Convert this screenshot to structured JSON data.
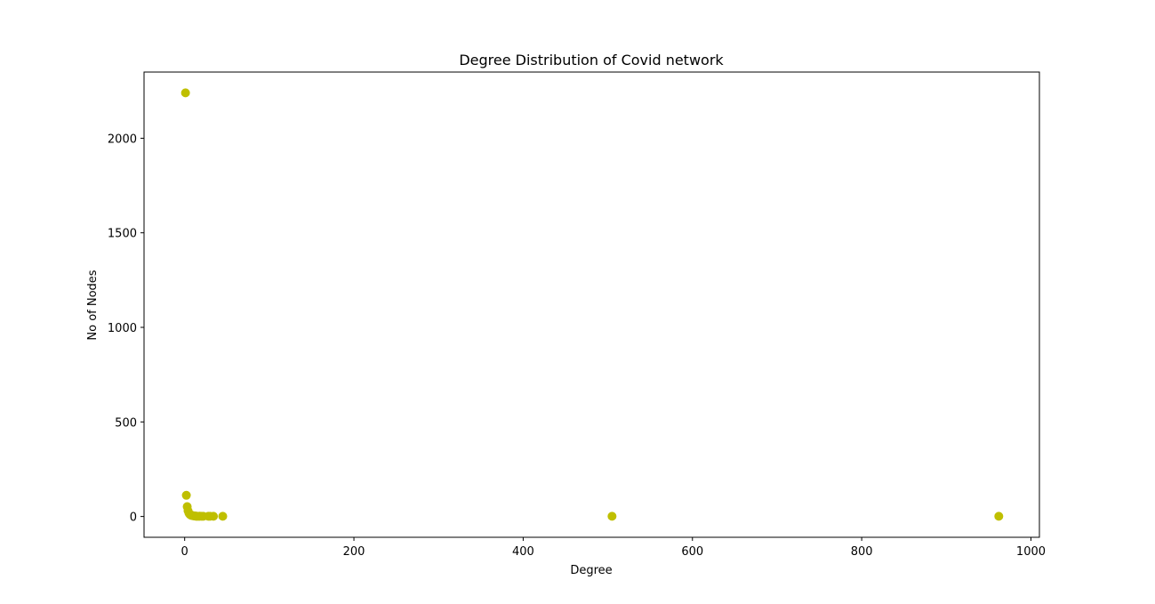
{
  "chart_data": {
    "type": "scatter",
    "title": "Degree Distribution of Covid network",
    "xlabel": "Degree",
    "ylabel": "No of Nodes",
    "xlim": [
      -48,
      1010
    ],
    "ylim": [
      -110,
      2350
    ],
    "xticks": [
      0,
      200,
      400,
      600,
      800,
      1000
    ],
    "yticks": [
      0,
      500,
      1000,
      1500,
      2000
    ],
    "xtick_labels": [
      "0",
      "200",
      "400",
      "600",
      "800",
      "1000"
    ],
    "ytick_labels": [
      "0",
      "500",
      "1000",
      "1500",
      "2000"
    ],
    "grid": false,
    "marker_color": "#bfbf00",
    "points": [
      {
        "x": 1,
        "y": 2240
      },
      {
        "x": 2,
        "y": 112
      },
      {
        "x": 3,
        "y": 52
      },
      {
        "x": 4,
        "y": 30
      },
      {
        "x": 5,
        "y": 18
      },
      {
        "x": 6,
        "y": 12
      },
      {
        "x": 7,
        "y": 8
      },
      {
        "x": 8,
        "y": 6
      },
      {
        "x": 9,
        "y": 5
      },
      {
        "x": 10,
        "y": 4
      },
      {
        "x": 11,
        "y": 3
      },
      {
        "x": 12,
        "y": 3
      },
      {
        "x": 13,
        "y": 2
      },
      {
        "x": 14,
        "y": 2
      },
      {
        "x": 15,
        "y": 1
      },
      {
        "x": 17,
        "y": 1
      },
      {
        "x": 18,
        "y": 2
      },
      {
        "x": 20,
        "y": 1
      },
      {
        "x": 22,
        "y": 1
      },
      {
        "x": 28,
        "y": 1
      },
      {
        "x": 30,
        "y": 1
      },
      {
        "x": 34,
        "y": 1
      },
      {
        "x": 45,
        "y": 1
      },
      {
        "x": 505,
        "y": 1
      },
      {
        "x": 962,
        "y": 1
      }
    ]
  }
}
